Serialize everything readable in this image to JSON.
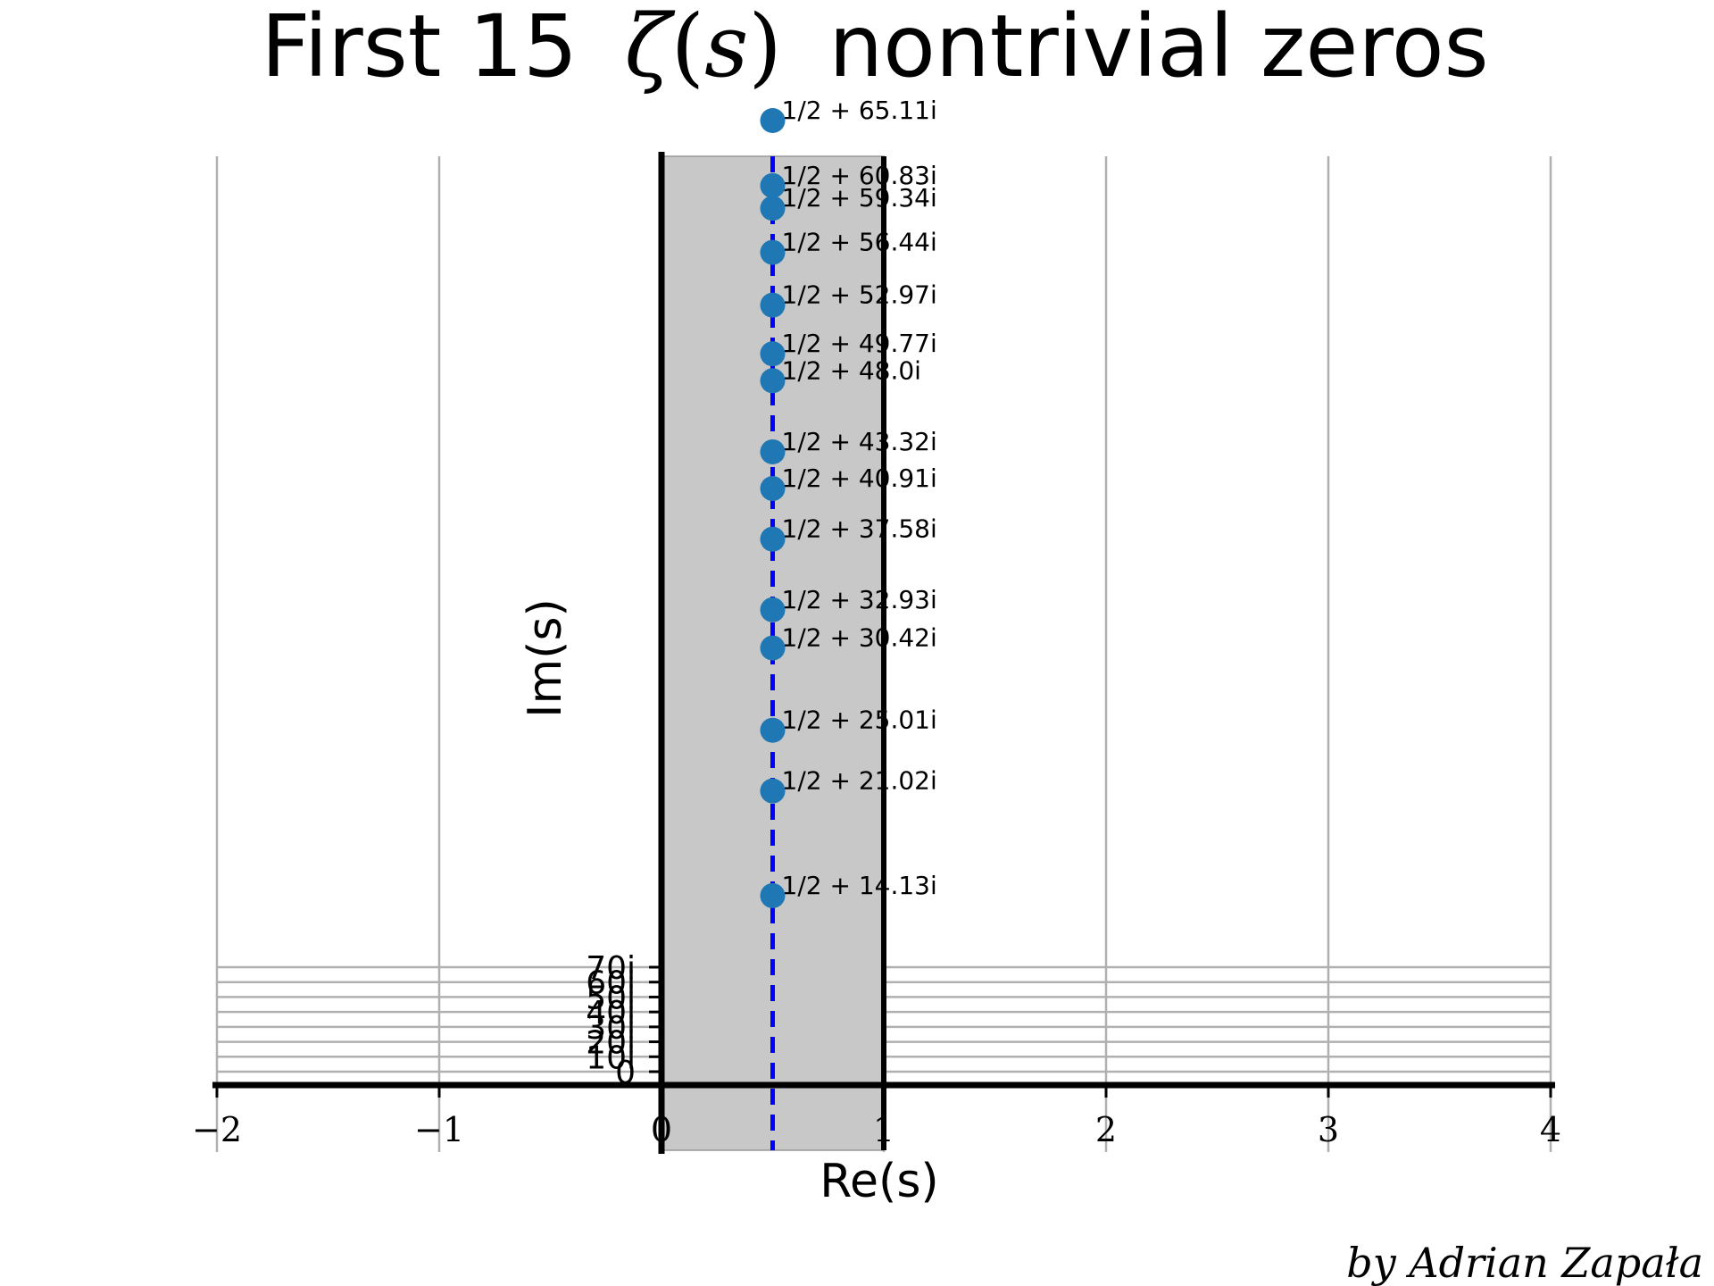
{
  "chart_data": {
    "type": "scatter",
    "title": {
      "prefix": "First 15",
      "math_symbol": "ζ",
      "math_arg": "s",
      "suffix": "nontrivial zeros"
    },
    "xlabel": "Re(s)",
    "ylabel": "Im(s)",
    "credit": "by Adrian Zapała",
    "xlim": [
      -2,
      4
    ],
    "x_ticks": [
      -2,
      -1,
      0,
      1,
      2,
      3,
      4
    ],
    "x_tick_labels": [
      "−2",
      "−1",
      "0",
      "1",
      "2",
      "3",
      "4"
    ],
    "y_ticks": [
      0,
      10,
      20,
      30,
      40,
      50,
      60,
      70
    ],
    "y_tick_labels": [
      "0",
      "10i",
      "20i",
      "30i",
      "40i",
      "50i",
      "60i",
      "70i"
    ],
    "grid": true,
    "critical_strip": [
      0,
      1
    ],
    "critical_line_re": 0.5,
    "points": [
      {
        "re": 0.5,
        "im": 14.13,
        "label": "1/2 + 14.13i"
      },
      {
        "re": 0.5,
        "im": 21.02,
        "label": "1/2 + 21.02i"
      },
      {
        "re": 0.5,
        "im": 25.01,
        "label": "1/2 + 25.01i"
      },
      {
        "re": 0.5,
        "im": 30.42,
        "label": "1/2 + 30.42i"
      },
      {
        "re": 0.5,
        "im": 32.93,
        "label": "1/2 + 32.93i"
      },
      {
        "re": 0.5,
        "im": 37.58,
        "label": "1/2 + 37.58i"
      },
      {
        "re": 0.5,
        "im": 40.91,
        "label": "1/2 + 40.91i"
      },
      {
        "re": 0.5,
        "im": 43.32,
        "label": "1/2 + 43.32i"
      },
      {
        "re": 0.5,
        "im": 48.0,
        "label": "1/2 + 48.0i"
      },
      {
        "re": 0.5,
        "im": 49.77,
        "label": "1/2 + 49.77i"
      },
      {
        "re": 0.5,
        "im": 52.97,
        "label": "1/2 + 52.97i"
      },
      {
        "re": 0.5,
        "im": 56.44,
        "label": "1/2 + 56.44i"
      },
      {
        "re": 0.5,
        "im": 59.34,
        "label": "1/2 + 59.34i"
      },
      {
        "re": 0.5,
        "im": 60.83,
        "label": "1/2 + 60.83i"
      },
      {
        "re": 0.5,
        "im": 65.11,
        "label": "1/2 + 65.11i"
      }
    ],
    "colors": {
      "points": "#1f77b4",
      "critical_line": "#0000ff",
      "strip": "#c8c8c8",
      "grid": "#b0b0b0",
      "axes": "#000000"
    }
  }
}
